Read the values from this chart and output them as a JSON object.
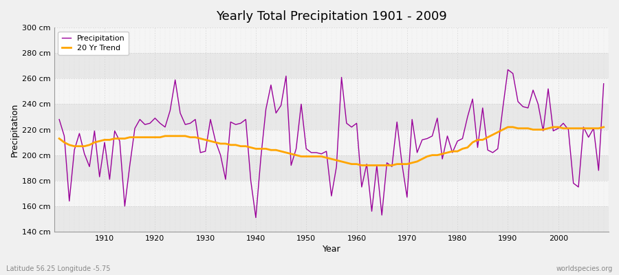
{
  "title": "Yearly Total Precipitation 1901 - 2009",
  "xlabel": "Year",
  "ylabel": "Precipitation",
  "years": [
    1901,
    1902,
    1903,
    1904,
    1905,
    1906,
    1907,
    1908,
    1909,
    1910,
    1911,
    1912,
    1913,
    1914,
    1915,
    1916,
    1917,
    1918,
    1919,
    1920,
    1921,
    1922,
    1923,
    1924,
    1925,
    1926,
    1927,
    1928,
    1929,
    1930,
    1931,
    1932,
    1933,
    1934,
    1935,
    1936,
    1937,
    1938,
    1939,
    1940,
    1941,
    1942,
    1943,
    1944,
    1945,
    1946,
    1947,
    1948,
    1949,
    1950,
    1951,
    1952,
    1953,
    1954,
    1955,
    1956,
    1957,
    1958,
    1959,
    1960,
    1961,
    1962,
    1963,
    1964,
    1965,
    1966,
    1967,
    1968,
    1969,
    1970,
    1971,
    1972,
    1973,
    1974,
    1975,
    1976,
    1977,
    1978,
    1979,
    1980,
    1981,
    1982,
    1983,
    1984,
    1985,
    1986,
    1987,
    1988,
    1989,
    1990,
    1991,
    1992,
    1993,
    1994,
    1995,
    1996,
    1997,
    1998,
    1999,
    2000,
    2001,
    2002,
    2003,
    2004,
    2005,
    2006,
    2007,
    2008,
    2009
  ],
  "precipitation": [
    228,
    215,
    164,
    204,
    217,
    201,
    191,
    219,
    183,
    210,
    181,
    219,
    211,
    160,
    192,
    221,
    228,
    224,
    225,
    229,
    225,
    222,
    235,
    259,
    233,
    224,
    225,
    228,
    202,
    203,
    228,
    211,
    200,
    181,
    226,
    224,
    225,
    228,
    180,
    151,
    198,
    236,
    255,
    233,
    239,
    262,
    192,
    205,
    240,
    205,
    202,
    202,
    201,
    203,
    168,
    191,
    261,
    225,
    222,
    225,
    175,
    193,
    156,
    192,
    153,
    194,
    191,
    226,
    193,
    167,
    228,
    202,
    212,
    213,
    215,
    229,
    197,
    215,
    202,
    211,
    213,
    230,
    244,
    206,
    237,
    204,
    202,
    205,
    237,
    267,
    264,
    242,
    238,
    237,
    251,
    240,
    219,
    252,
    219,
    221,
    225,
    220,
    178,
    175,
    222,
    214,
    221,
    188,
    256
  ],
  "trend": [
    213,
    210,
    208,
    207,
    207,
    207,
    208,
    210,
    211,
    212,
    212,
    213,
    213,
    213,
    214,
    214,
    214,
    214,
    214,
    214,
    214,
    215,
    215,
    215,
    215,
    215,
    214,
    214,
    213,
    212,
    211,
    210,
    209,
    209,
    208,
    208,
    207,
    207,
    206,
    205,
    205,
    205,
    204,
    204,
    203,
    202,
    201,
    200,
    199,
    199,
    199,
    199,
    199,
    198,
    197,
    196,
    195,
    194,
    193,
    193,
    192,
    192,
    192,
    192,
    192,
    192,
    192,
    193,
    193,
    193,
    194,
    195,
    197,
    199,
    200,
    200,
    201,
    202,
    203,
    203,
    205,
    206,
    210,
    212,
    212,
    214,
    216,
    218,
    220,
    222,
    222,
    221,
    221,
    221,
    220,
    220,
    220,
    221,
    222,
    222,
    221,
    221,
    221,
    221,
    221,
    221,
    221,
    221,
    222
  ],
  "precip_color": "#990099",
  "trend_color": "#FFA500",
  "background_color": "#F0F0F0",
  "plot_bg_light": "#F5F5F5",
  "plot_bg_dark": "#E8E8E8",
  "grid_color": "#CCCCCC",
  "ylim": [
    140,
    300
  ],
  "yticks": [
    140,
    160,
    180,
    200,
    220,
    240,
    260,
    280,
    300
  ],
  "xlim": [
    1900,
    2010
  ],
  "subtitle_left": "Latitude 56.25 Longitude -5.75",
  "subtitle_right": "worldspecies.org",
  "legend_labels": [
    "Precipitation",
    "20 Yr Trend"
  ]
}
